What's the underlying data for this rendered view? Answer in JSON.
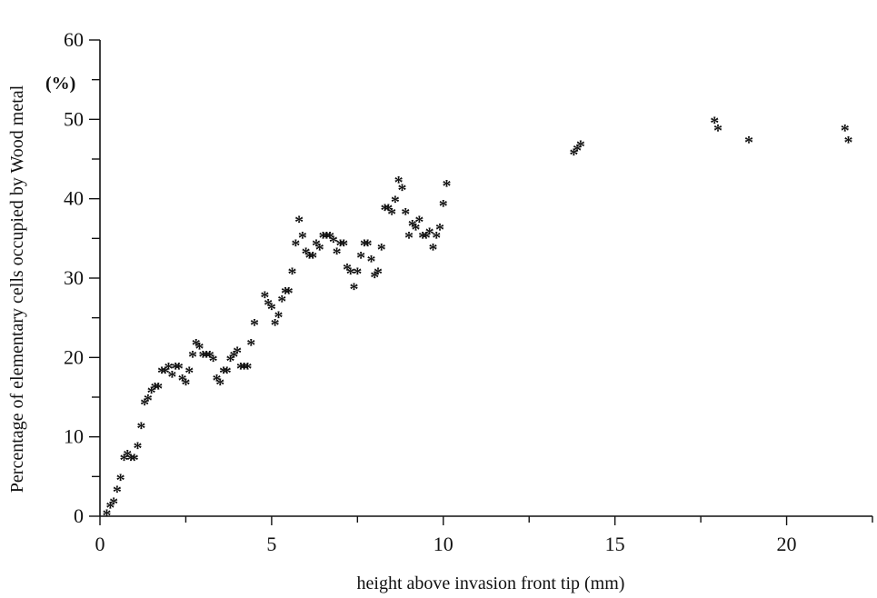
{
  "chart_data": {
    "type": "scatter",
    "title": "",
    "xlabel": "height above invasion front tip (mm)",
    "ylabel": "Percentage of elementary cells occupied by Wood metal",
    "yunit": "(%)",
    "xlim": [
      0,
      22.5
    ],
    "ylim": [
      0,
      60
    ],
    "xticks": [
      0,
      5,
      10,
      15,
      20
    ],
    "yticks": [
      0,
      10,
      20,
      30,
      40,
      50,
      60
    ],
    "marker": "*",
    "grid": false,
    "series": [
      {
        "points": [
          [
            0.2,
            0.5
          ],
          [
            0.3,
            1.5
          ],
          [
            0.4,
            2.0
          ],
          [
            0.5,
            3.5
          ],
          [
            0.6,
            5.0
          ],
          [
            0.7,
            7.5
          ],
          [
            0.8,
            8.0
          ],
          [
            0.9,
            7.5
          ],
          [
            1.0,
            7.5
          ],
          [
            1.1,
            9.0
          ],
          [
            1.2,
            11.5
          ],
          [
            1.3,
            14.5
          ],
          [
            1.4,
            15.0
          ],
          [
            1.5,
            16.0
          ],
          [
            1.6,
            16.5
          ],
          [
            1.7,
            16.5
          ],
          [
            1.8,
            18.5
          ],
          [
            1.9,
            18.5
          ],
          [
            2.0,
            19.0
          ],
          [
            2.1,
            18.0
          ],
          [
            2.2,
            19.0
          ],
          [
            2.3,
            19.0
          ],
          [
            2.4,
            17.5
          ],
          [
            2.5,
            17.0
          ],
          [
            2.6,
            18.5
          ],
          [
            2.7,
            20.5
          ],
          [
            2.8,
            22.0
          ],
          [
            2.9,
            21.5
          ],
          [
            3.0,
            20.5
          ],
          [
            3.1,
            20.5
          ],
          [
            3.2,
            20.5
          ],
          [
            3.3,
            20.0
          ],
          [
            3.4,
            17.5
          ],
          [
            3.5,
            17.0
          ],
          [
            3.6,
            18.5
          ],
          [
            3.7,
            18.5
          ],
          [
            3.8,
            20.0
          ],
          [
            3.9,
            20.5
          ],
          [
            4.0,
            21.0
          ],
          [
            4.1,
            19.0
          ],
          [
            4.2,
            19.0
          ],
          [
            4.3,
            19.0
          ],
          [
            4.4,
            22.0
          ],
          [
            4.5,
            24.5
          ],
          [
            4.8,
            28.0
          ],
          [
            4.9,
            27.0
          ],
          [
            5.0,
            26.5
          ],
          [
            5.1,
            24.5
          ],
          [
            5.2,
            25.5
          ],
          [
            5.3,
            27.5
          ],
          [
            5.4,
            28.5
          ],
          [
            5.5,
            28.5
          ],
          [
            5.6,
            31.0
          ],
          [
            5.7,
            34.5
          ],
          [
            5.8,
            37.5
          ],
          [
            5.9,
            35.5
          ],
          [
            6.0,
            33.5
          ],
          [
            6.1,
            33.0
          ],
          [
            6.2,
            33.0
          ],
          [
            6.3,
            34.5
          ],
          [
            6.4,
            34.0
          ],
          [
            6.5,
            35.5
          ],
          [
            6.6,
            35.5
          ],
          [
            6.7,
            35.5
          ],
          [
            6.8,
            35.0
          ],
          [
            6.9,
            33.5
          ],
          [
            7.0,
            34.5
          ],
          [
            7.1,
            34.5
          ],
          [
            7.2,
            31.5
          ],
          [
            7.3,
            31.0
          ],
          [
            7.4,
            29.0
          ],
          [
            7.5,
            31.0
          ],
          [
            7.6,
            33.0
          ],
          [
            7.7,
            34.5
          ],
          [
            7.8,
            34.5
          ],
          [
            7.9,
            32.5
          ],
          [
            8.0,
            30.5
          ],
          [
            8.1,
            31.0
          ],
          [
            8.2,
            34.0
          ],
          [
            8.3,
            39.0
          ],
          [
            8.4,
            39.0
          ],
          [
            8.5,
            38.5
          ],
          [
            8.6,
            40.0
          ],
          [
            8.7,
            42.5
          ],
          [
            8.8,
            41.5
          ],
          [
            8.9,
            38.5
          ],
          [
            9.0,
            35.5
          ],
          [
            9.1,
            37.0
          ],
          [
            9.2,
            36.5
          ],
          [
            9.3,
            37.5
          ],
          [
            9.4,
            35.5
          ],
          [
            9.5,
            35.5
          ],
          [
            9.6,
            36.0
          ],
          [
            9.7,
            34.0
          ],
          [
            9.8,
            35.5
          ],
          [
            9.9,
            36.5
          ],
          [
            10.0,
            39.5
          ],
          [
            10.1,
            42.0
          ],
          [
            13.8,
            46.0
          ],
          [
            13.9,
            46.5
          ],
          [
            14.0,
            47.0
          ],
          [
            17.9,
            50.0
          ],
          [
            18.0,
            49.0
          ],
          [
            18.9,
            47.5
          ],
          [
            21.7,
            49.0
          ],
          [
            21.8,
            47.5
          ]
        ]
      }
    ]
  }
}
